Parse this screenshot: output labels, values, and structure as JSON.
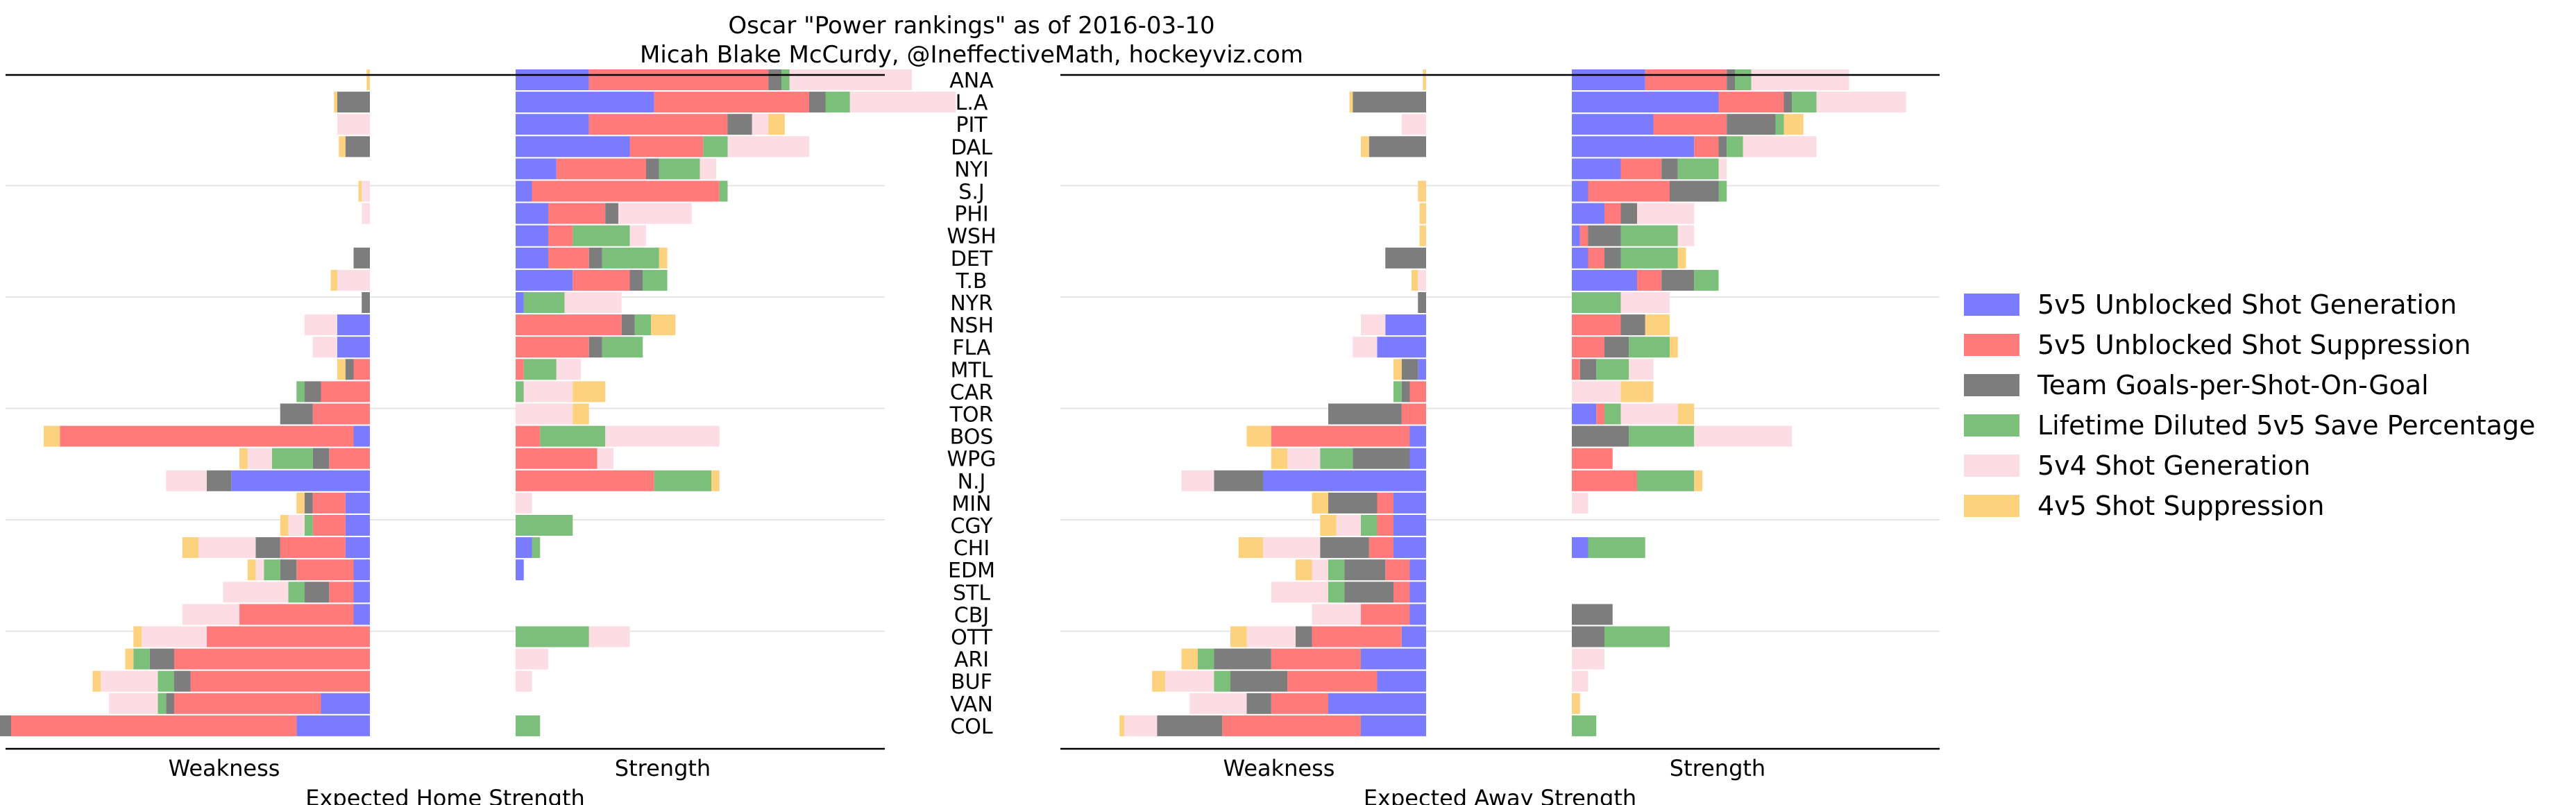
{
  "title": "Oscar \"Power rankings\" as of 2016-03-10",
  "subtitle": "Micah Blake McCurdy, @IneffectiveMath, hockeyviz.com",
  "legend": [
    {
      "key": "gen5v5",
      "label": "5v5 Unblocked Shot Generation",
      "color": "#7b7bff",
      "opacity": 1
    },
    {
      "key": "sup5v5",
      "label": "5v5 Unblocked Shot Suppression",
      "color": "#ff7b7b",
      "opacity": 1
    },
    {
      "key": "gpsog",
      "label": "Team Goals-per-Shot-On-Goal",
      "color": "#7d7d7d",
      "opacity": 1
    },
    {
      "key": "sv5v5",
      "label": "Lifetime Diluted 5v5 Save Percentage",
      "color": "#7bbf7b",
      "opacity": 1
    },
    {
      "key": "gen5v4",
      "label": "5v4 Shot Generation",
      "color": "#fddde4",
      "opacity": 1
    },
    {
      "key": "sup4v5",
      "label": "4v5 Shot Suppression",
      "color": "#fdd27e",
      "opacity": 1
    }
  ],
  "chart_data": [
    {
      "type": "bar",
      "orientation": "horizontal-stacked-diverging",
      "xlabel": "Expected Home Strength",
      "left_label": "Weakness",
      "right_label": "Strength",
      "categories": [
        "ANA",
        "L.A",
        "PIT",
        "DAL",
        "NYI",
        "S.J",
        "PHI",
        "WSH",
        "DET",
        "T.B",
        "NYR",
        "NSH",
        "FLA",
        "MTL",
        "CAR",
        "TOR",
        "BOS",
        "WPG",
        "N.J",
        "MIN",
        "CGY",
        "CHI",
        "EDM",
        "STL",
        "CBJ",
        "OTT",
        "ARI",
        "BUF",
        "VAN",
        "COL"
      ],
      "series": [
        {
          "key": "gen5v5",
          "values": [
            0.45,
            0.85,
            0.45,
            0.7,
            0.25,
            0.1,
            0.2,
            0.2,
            0.2,
            0.35,
            0.05,
            0.0,
            -0.2,
            -0.05,
            0.0,
            -0.05,
            -0.1,
            -0.05,
            -0.9,
            -0.2,
            -0.2,
            0.1,
            0.05,
            -0.05,
            -0.05,
            -0.05,
            -0.35,
            -0.25,
            -0.4,
            -0.35
          ]
        },
        {
          "key": "sup5v5",
          "values": [
            1.1,
            0.95,
            0.85,
            0.45,
            0.55,
            1.15,
            0.35,
            0.15,
            0.25,
            0.35,
            0.0,
            0.65,
            0.45,
            0.05,
            0.0,
            0.0,
            0.15,
            0.5,
            0.85,
            -0.2,
            -0.2,
            0.0,
            0.0,
            -0.05,
            -0.7,
            -1.05,
            -1.05,
            -1.05,
            -1.05,
            -1.9
          ]
        },
        {
          "key": "gpsog",
          "values": [
            0.08,
            0.1,
            0.15,
            0.0,
            0.08,
            0.0,
            0.08,
            0.0,
            0.08,
            0.08,
            0.0,
            0.08,
            0.08,
            0.0,
            0.0,
            0.0,
            0.0,
            0.0,
            0.0,
            0.0,
            0.0,
            0.0,
            0.0,
            0.0,
            -0.05,
            0.0,
            -0.15,
            -0.1,
            0.0,
            -0.2
          ]
        },
        {
          "key": "sv5v5",
          "values": [
            0.05,
            0.15,
            0.0,
            0.15,
            0.25,
            0.05,
            0.0,
            0.35,
            0.35,
            0.15,
            0.25,
            0.1,
            0.25,
            0.2,
            0.05,
            0.0,
            0.4,
            0.0,
            0.35,
            0.0,
            0.35,
            0.05,
            0.0,
            0.0,
            0.0,
            0.45,
            0.0,
            0.0,
            0.0,
            0.15
          ]
        },
        {
          "key": "gen5v4",
          "values": [
            0.75,
            0.65,
            0.1,
            0.5,
            0.1,
            0.0,
            0.45,
            0.1,
            0.0,
            0.0,
            0.35,
            0.0,
            0.0,
            0.15,
            0.3,
            0.35,
            0.7,
            0.1,
            0.0,
            0.1,
            0.0,
            0.0,
            0.0,
            0.0,
            0.0,
            0.25,
            0.2,
            0.1,
            0.0,
            0.0
          ]
        },
        {
          "key": "sup4v5",
          "values": [
            0.0,
            0.0,
            0.1,
            0.0,
            0.0,
            0.0,
            0.0,
            0.0,
            0.05,
            0.0,
            0.0,
            0.15,
            0.0,
            0.0,
            0.2,
            0.1,
            0.0,
            0.0,
            0.05,
            0.0,
            0.0,
            0.0,
            0.0,
            0.0,
            0.0,
            0.0,
            0.0,
            0.0,
            0.0,
            0.0
          ]
        }
      ],
      "weakness_series": [
        {
          "key": "gen5v5",
          "values": [
            0,
            0,
            0,
            0,
            0,
            0,
            0,
            0,
            0,
            0,
            0,
            -0.2,
            -0.2,
            0,
            0,
            0,
            -0.1,
            0,
            -0.85,
            -0.15,
            -0.15,
            -0.15,
            -0.1,
            -0.1,
            -0.1,
            0,
            0,
            0,
            -0.3,
            -0.45
          ]
        },
        {
          "key": "sup5v5",
          "values": [
            0,
            0,
            0,
            0,
            0,
            0,
            0,
            0,
            0,
            0,
            0,
            0,
            0,
            -0.1,
            -0.3,
            -0.35,
            -1.8,
            -0.25,
            0,
            -0.2,
            -0.2,
            -0.4,
            -0.35,
            -0.15,
            -0.7,
            -1.0,
            -1.2,
            -1.1,
            -0.9,
            -1.75
          ]
        },
        {
          "key": "gpsog",
          "values": [
            0,
            -0.2,
            0,
            -0.15,
            0,
            0,
            0,
            0,
            -0.1,
            0,
            -0.05,
            0,
            0,
            -0.05,
            -0.1,
            -0.2,
            0,
            -0.1,
            -0.15,
            -0.05,
            0,
            -0.15,
            -0.1,
            -0.15,
            0,
            0,
            -0.15,
            -0.1,
            -0.05,
            -0.2
          ]
        },
        {
          "key": "sv5v5",
          "values": [
            0,
            0,
            0,
            0,
            0,
            0,
            0,
            0,
            0,
            0,
            0,
            0,
            0,
            0,
            -0.05,
            0,
            0,
            -0.25,
            0,
            0,
            -0.05,
            0,
            -0.1,
            -0.1,
            0,
            0,
            -0.1,
            -0.1,
            -0.05,
            0
          ]
        },
        {
          "key": "gen5v4",
          "values": [
            0,
            0,
            -0.2,
            0,
            0,
            -0.05,
            -0.05,
            0,
            0,
            -0.2,
            0,
            -0.2,
            -0.15,
            0,
            0,
            0,
            0,
            -0.15,
            -0.25,
            0,
            -0.1,
            -0.35,
            -0.05,
            -0.4,
            -0.35,
            -0.4,
            0,
            -0.35,
            -0.3,
            -0.25
          ]
        },
        {
          "key": "sup4v5",
          "values": [
            -0.02,
            -0.02,
            0,
            -0.04,
            0,
            -0.02,
            0,
            0,
            0,
            -0.04,
            0,
            0,
            0,
            -0.05,
            0,
            0,
            -0.1,
            -0.05,
            0,
            -0.05,
            -0.05,
            -0.1,
            -0.05,
            0,
            0,
            -0.05,
            -0.05,
            -0.05,
            0,
            -0.05
          ]
        }
      ]
    },
    {
      "type": "bar",
      "orientation": "horizontal-stacked-diverging",
      "xlabel": "Expected Away Strength",
      "left_label": "Weakness",
      "right_label": "Strength",
      "categories": [
        "ANA",
        "L.A",
        "PIT",
        "DAL",
        "NYI",
        "S.J",
        "PHI",
        "WSH",
        "DET",
        "T.B",
        "NYR",
        "NSH",
        "FLA",
        "MTL",
        "CAR",
        "TOR",
        "BOS",
        "WPG",
        "N.J",
        "MIN",
        "CGY",
        "CHI",
        "EDM",
        "STL",
        "CBJ",
        "OTT",
        "ARI",
        "BUF",
        "VAN",
        "COL"
      ],
      "series": [
        {
          "key": "gen5v5",
          "values": [
            0.45,
            0.9,
            0.5,
            0.75,
            0.3,
            0.1,
            0.2,
            0.05,
            0.1,
            0.4,
            0.0,
            0.0,
            0.0,
            0.0,
            0.0,
            0.15,
            0.0,
            0.0,
            0.0,
            0.0,
            0.0,
            0.1,
            0.0,
            0.0,
            0.0,
            0.0,
            0.0,
            0.0,
            0.0,
            0.0
          ]
        },
        {
          "key": "sup5v5",
          "values": [
            0.5,
            0.4,
            0.45,
            0.15,
            0.25,
            0.5,
            0.1,
            0.05,
            0.1,
            0.15,
            0.0,
            0.3,
            0.2,
            0.05,
            0.0,
            0.05,
            0.0,
            0.25,
            0.4,
            0.0,
            0.0,
            0.0,
            0.0,
            0.0,
            0.0,
            0.0,
            0.0,
            0.0,
            0.0,
            0.0
          ]
        },
        {
          "key": "gpsog",
          "values": [
            0.05,
            0.05,
            0.3,
            0.05,
            0.1,
            0.3,
            0.1,
            0.2,
            0.1,
            0.2,
            0.0,
            0.15,
            0.15,
            0.1,
            0.0,
            0.0,
            0.35,
            0.0,
            0.0,
            0.0,
            0.0,
            0.0,
            0.0,
            0.0,
            0.25,
            0.2,
            0.0,
            0.0,
            0.0,
            0.0
          ]
        },
        {
          "key": "sv5v5",
          "values": [
            0.1,
            0.15,
            0.05,
            0.1,
            0.25,
            0.05,
            0.0,
            0.35,
            0.35,
            0.15,
            0.3,
            0.0,
            0.25,
            0.2,
            0.0,
            0.1,
            0.4,
            0.0,
            0.35,
            0.0,
            0.0,
            0.35,
            0.0,
            0.0,
            0.0,
            0.4,
            0.0,
            0.0,
            0.0,
            0.15
          ]
        },
        {
          "key": "gen5v4",
          "values": [
            0.6,
            0.55,
            0.0,
            0.45,
            0.05,
            0.0,
            0.35,
            0.1,
            0.0,
            0.0,
            0.3,
            0.0,
            0.0,
            0.15,
            0.3,
            0.35,
            0.6,
            0.0,
            0.0,
            0.1,
            0.0,
            0.0,
            0.0,
            0.0,
            0.0,
            0.0,
            0.2,
            0.1,
            0.0,
            0.0
          ]
        },
        {
          "key": "sup4v5",
          "values": [
            0.0,
            0.0,
            0.12,
            0.0,
            0.0,
            0.0,
            0.0,
            0.0,
            0.05,
            0.0,
            0.0,
            0.15,
            0.05,
            0.0,
            0.2,
            0.1,
            0.0,
            0.0,
            0.05,
            0.0,
            0.0,
            0.0,
            0.0,
            0.0,
            0.0,
            0.0,
            0.0,
            0.0,
            0.05,
            0.0
          ]
        }
      ],
      "weakness_series": [
        {
          "key": "gen5v5",
          "values": [
            0,
            0,
            0,
            0,
            0,
            0,
            0,
            0,
            0,
            0,
            0,
            -0.25,
            -0.3,
            -0.05,
            0,
            0,
            -0.1,
            -0.1,
            -1.0,
            -0.2,
            -0.2,
            -0.2,
            -0.1,
            -0.1,
            -0.1,
            -0.15,
            -0.4,
            -0.3,
            -0.6,
            -0.4
          ]
        },
        {
          "key": "sup5v5",
          "values": [
            0,
            0,
            0,
            0,
            0,
            0,
            0,
            0,
            0,
            0,
            0,
            0,
            0,
            0,
            -0.1,
            -0.15,
            -0.85,
            0,
            0,
            -0.1,
            -0.1,
            -0.15,
            -0.15,
            -0.1,
            -0.3,
            -0.55,
            -0.55,
            -0.55,
            -0.35,
            -0.85
          ]
        },
        {
          "key": "gpsog",
          "values": [
            0,
            -0.45,
            0,
            -0.35,
            0,
            0,
            0,
            0,
            -0.25,
            0,
            -0.05,
            0,
            0,
            -0.1,
            -0.05,
            -0.45,
            0,
            -0.35,
            -0.3,
            -0.3,
            0,
            -0.3,
            -0.25,
            -0.3,
            0,
            -0.1,
            -0.35,
            -0.35,
            -0.15,
            -0.4
          ]
        },
        {
          "key": "sv5v5",
          "values": [
            0,
            0,
            0,
            0,
            0,
            0,
            0,
            0,
            0,
            0,
            0,
            0,
            0,
            0,
            -0.05,
            0,
            0,
            -0.2,
            0,
            0,
            -0.1,
            0,
            -0.1,
            -0.1,
            0,
            0,
            -0.1,
            -0.1,
            0,
            0
          ]
        },
        {
          "key": "gen5v4",
          "values": [
            0,
            0,
            -0.15,
            0,
            0,
            0,
            0,
            0,
            0,
            -0.05,
            0,
            -0.15,
            -0.15,
            0,
            0,
            0,
            0,
            -0.2,
            -0.2,
            0,
            -0.15,
            -0.35,
            -0.1,
            -0.35,
            -0.3,
            -0.3,
            0,
            -0.3,
            -0.35,
            -0.2
          ]
        },
        {
          "key": "sup4v5",
          "values": [
            -0.02,
            -0.02,
            0,
            -0.05,
            0,
            -0.05,
            -0.04,
            -0.04,
            0,
            -0.04,
            0,
            0,
            0,
            -0.05,
            0,
            0,
            -0.15,
            -0.1,
            0,
            -0.1,
            -0.1,
            -0.15,
            -0.1,
            0,
            0,
            -0.1,
            -0.1,
            -0.08,
            0,
            -0.03
          ]
        }
      ]
    }
  ]
}
